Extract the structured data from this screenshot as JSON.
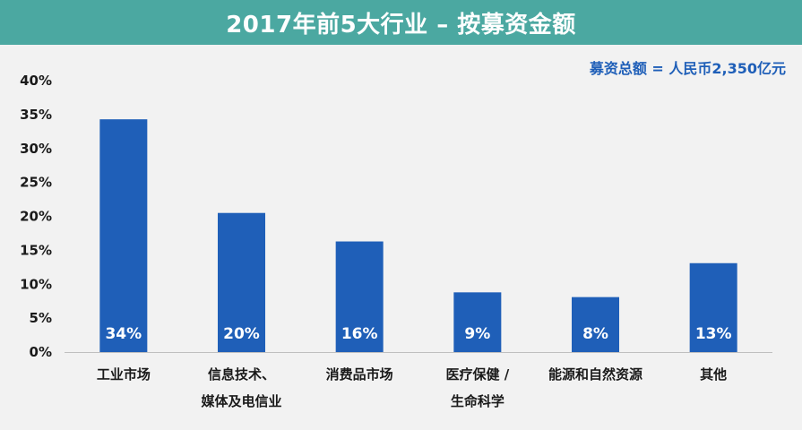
{
  "title": "2017年前5大行业 – 按募资金额",
  "note": "募资总额 = 人民币2,350亿元",
  "colors": {
    "title_bg": "#4ba8a1",
    "bar": "#1f5fb8",
    "note": "#1f5fb8",
    "background": "#f2f2f2"
  },
  "chart_data": {
    "type": "bar",
    "title": "2017年前5大行业 – 按募资金额",
    "xlabel": "",
    "ylabel": "",
    "ylim": [
      0,
      40
    ],
    "yticks": [
      "0%",
      "5%",
      "10%",
      "15%",
      "20%",
      "25%",
      "30%",
      "35%",
      "40%"
    ],
    "categories": [
      [
        "工业市场"
      ],
      [
        "信息技术、",
        "媒体及电信业"
      ],
      [
        "消费品市场"
      ],
      [
        "医疗保健 /",
        "生命科学"
      ],
      [
        "能源和自然资源"
      ],
      [
        "其他"
      ]
    ],
    "values": [
      34.3,
      20.5,
      16.3,
      8.8,
      8.1,
      13.1
    ],
    "data_labels": [
      "34%",
      "20%",
      "16%",
      "9%",
      "8%",
      "13%"
    ],
    "grid": false,
    "legend": "none"
  }
}
